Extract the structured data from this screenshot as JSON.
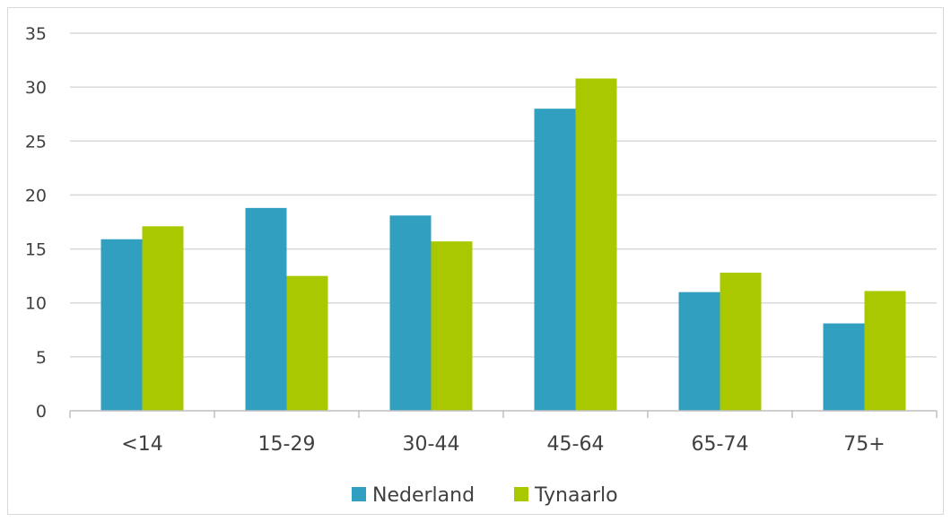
{
  "chart_data": {
    "type": "bar",
    "categories": [
      "<14",
      "15-29",
      "30-44",
      "45-64",
      "65-74",
      "75+"
    ],
    "series": [
      {
        "name": "Nederland",
        "values": [
          15.9,
          18.8,
          18.1,
          28.0,
          11.0,
          8.1
        ],
        "color": "#31a0c0"
      },
      {
        "name": "Tynaarlo",
        "values": [
          17.1,
          12.5,
          15.7,
          30.8,
          12.8,
          11.1
        ],
        "color": "#a9c800"
      }
    ],
    "ylim": [
      0,
      35
    ],
    "yticks": [
      0,
      5,
      10,
      15,
      20,
      25,
      30,
      35
    ],
    "grid": true,
    "legend_position": "bottom",
    "xlabel": "",
    "ylabel": "",
    "title": ""
  }
}
